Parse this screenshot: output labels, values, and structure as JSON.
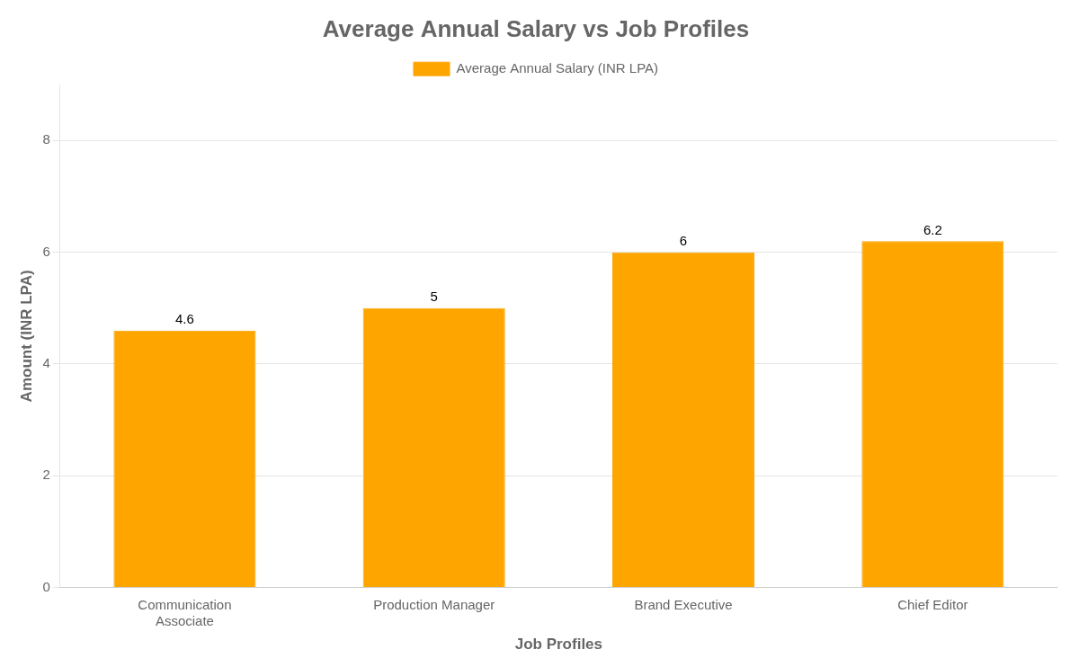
{
  "chart_data": {
    "type": "bar",
    "title": "Average Annual Salary vs Job Profiles",
    "xlabel": "Job Profiles",
    "ylabel": "Amount (INR LPA)",
    "categories": [
      "Communication\nAssociate",
      "Production Manager",
      "Brand Executive",
      "Chief Editor"
    ],
    "series": [
      {
        "name": "Average Annual Salary (INR LPA)",
        "color": "#FFA500",
        "values": [
          4.6,
          5,
          6,
          6.2
        ]
      }
    ],
    "ylim": [
      0,
      9
    ],
    "yticks": [
      0,
      2,
      4,
      6,
      8
    ],
    "grid": true,
    "legend": "top",
    "data_labels": true
  }
}
